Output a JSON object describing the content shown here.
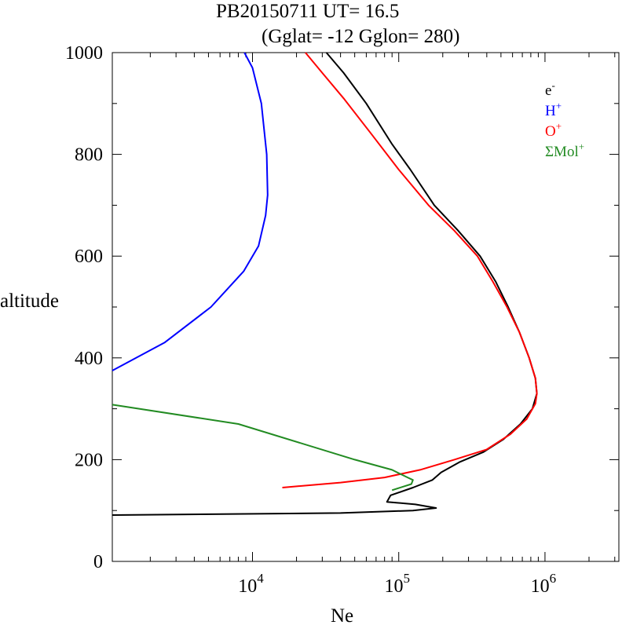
{
  "chart_data": {
    "type": "line",
    "title": "PB20150711   UT=  16.5",
    "subtitle": "(Gglat= -12   Gglon=  280)",
    "xlabel": "Ne",
    "ylabel": "altitude",
    "xscale": "log",
    "xlim": [
      1100,
      3200000
    ],
    "ylim": [
      0,
      1000
    ],
    "x_ticks": [
      {
        "value": 10000,
        "base": "10",
        "exp": "4"
      },
      {
        "value": 100000,
        "base": "10",
        "exp": "5"
      },
      {
        "value": 1000000,
        "base": "10",
        "exp": "6"
      }
    ],
    "y_ticks": [
      {
        "value": 0,
        "label": "0"
      },
      {
        "value": 200,
        "label": "200"
      },
      {
        "value": 400,
        "label": "400"
      },
      {
        "value": 600,
        "label": "600"
      },
      {
        "value": 800,
        "label": "800"
      },
      {
        "value": 1000,
        "label": "1000"
      }
    ],
    "legend_position": "top-right",
    "grid": false,
    "series": [
      {
        "name": "e",
        "sup": "-",
        "color": "#000000",
        "points": [
          [
            1100,
            91
          ],
          [
            40000,
            95
          ],
          [
            125000,
            100
          ],
          [
            180000,
            105
          ],
          [
            130000,
            112
          ],
          [
            83000,
            117
          ],
          [
            88000,
            130
          ],
          [
            125000,
            145
          ],
          [
            170000,
            160
          ],
          [
            195000,
            175
          ],
          [
            260000,
            195
          ],
          [
            380000,
            215
          ],
          [
            520000,
            240
          ],
          [
            680000,
            270
          ],
          [
            820000,
            300
          ],
          [
            880000,
            330
          ],
          [
            860000,
            360
          ],
          [
            780000,
            400
          ],
          [
            670000,
            450
          ],
          [
            560000,
            500
          ],
          [
            460000,
            550
          ],
          [
            360000,
            600
          ],
          [
            255000,
            650
          ],
          [
            175000,
            700
          ],
          [
            120000,
            770
          ],
          [
            90000,
            820
          ],
          [
            60000,
            900
          ],
          [
            42000,
            960
          ],
          [
            32000,
            1000
          ]
        ]
      },
      {
        "name": "H",
        "sup": "+",
        "color": "#0000ff",
        "points": [
          [
            1100,
            375
          ],
          [
            2500,
            430
          ],
          [
            5200,
            500
          ],
          [
            8700,
            570
          ],
          [
            11000,
            620
          ],
          [
            12300,
            680
          ],
          [
            12700,
            720
          ],
          [
            12500,
            800
          ],
          [
            11500,
            900
          ],
          [
            10000,
            970
          ],
          [
            8800,
            1000
          ]
        ]
      },
      {
        "name": "O",
        "sup": "+",
        "color": "#ff0000",
        "points": [
          [
            16000,
            145
          ],
          [
            40000,
            155
          ],
          [
            80000,
            165
          ],
          [
            140000,
            180
          ],
          [
            240000,
            200
          ],
          [
            400000,
            220
          ],
          [
            580000,
            250
          ],
          [
            750000,
            280
          ],
          [
            860000,
            310
          ],
          [
            880000,
            330
          ],
          [
            860000,
            360
          ],
          [
            780000,
            400
          ],
          [
            670000,
            450
          ],
          [
            550000,
            500
          ],
          [
            440000,
            550
          ],
          [
            345000,
            600
          ],
          [
            240000,
            650
          ],
          [
            160000,
            700
          ],
          [
            100000,
            770
          ],
          [
            65000,
            840
          ],
          [
            42000,
            910
          ],
          [
            30000,
            960
          ],
          [
            23000,
            1000
          ]
        ]
      },
      {
        "name": "ΣMol",
        "sup": "+",
        "color": "#228b22",
        "points": [
          [
            1100,
            308
          ],
          [
            8000,
            270
          ],
          [
            50000,
            200
          ],
          [
            90000,
            180
          ],
          [
            115000,
            165
          ],
          [
            125000,
            160
          ],
          [
            122000,
            152
          ],
          [
            90000,
            140
          ]
        ]
      }
    ]
  }
}
